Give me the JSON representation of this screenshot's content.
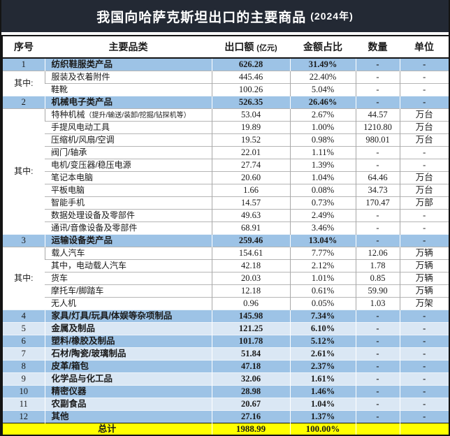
{
  "title": {
    "main": "我国向哈萨克斯坦出口的主要商品",
    "year": "(2024年)"
  },
  "header": {
    "no": "序号",
    "category": "主要品类",
    "export_value": "出口额",
    "export_value_unit": "(亿元)",
    "share": "金额占比",
    "quantity": "数量",
    "unit": "单位"
  },
  "group_label": "其中:",
  "colors": {
    "title_bg": "#232934",
    "category_row_blue": "#9DC3E6",
    "category_row_light_blue": "#DAE7F4",
    "total_row_yellow": "#FFFF00",
    "title_text": "#FFFFFF"
  },
  "rows": [
    {
      "style": "cat-strong",
      "no": "1",
      "label": "纺织鞋服类产品",
      "note": "",
      "value": "626.28",
      "share": "31.49%",
      "qty": "-",
      "unit": "-"
    },
    {
      "style": "sub",
      "group_start": true,
      "group_span": 2,
      "label": "服装及衣着附件",
      "note": "",
      "value": "445.46",
      "share": "22.40%",
      "qty": "-",
      "unit": "-"
    },
    {
      "style": "sub",
      "grouped": true,
      "label": "鞋靴",
      "note": "",
      "value": "100.26",
      "share": "5.04%",
      "qty": "-",
      "unit": "-"
    },
    {
      "style": "cat-strong",
      "no": "2",
      "label": "机械电子类产品",
      "note": "",
      "value": "526.35",
      "share": "26.46%",
      "qty": "-",
      "unit": "-"
    },
    {
      "style": "sub",
      "group_start": true,
      "group_span": 10,
      "label": "特种机械",
      "note": "（提升/输送/装卸/挖掘/钻探机等）",
      "value": "53.04",
      "share": "2.67%",
      "qty": "44.57",
      "unit": "万台"
    },
    {
      "style": "sub",
      "grouped": true,
      "label": "手提风电动工具",
      "note": "",
      "value": "19.89",
      "share": "1.00%",
      "qty": "1210.80",
      "unit": "万台"
    },
    {
      "style": "sub",
      "grouped": true,
      "label": "压缩机/风扇/空调",
      "note": "",
      "value": "19.52",
      "share": "0.98%",
      "qty": "980.01",
      "unit": "万台"
    },
    {
      "style": "sub",
      "grouped": true,
      "label": "阀门/轴承",
      "note": "",
      "value": "22.01",
      "share": "1.11%",
      "qty": "-",
      "unit": "-"
    },
    {
      "style": "sub",
      "grouped": true,
      "label": "电机/变压器/稳压电源",
      "note": "",
      "value": "27.74",
      "share": "1.39%",
      "qty": "-",
      "unit": "-"
    },
    {
      "style": "sub",
      "grouped": true,
      "label": "笔记本电脑",
      "note": "",
      "value": "20.60",
      "share": "1.04%",
      "qty": "64.46",
      "unit": "万台"
    },
    {
      "style": "sub",
      "grouped": true,
      "label": "平板电脑",
      "note": "",
      "value": "1.66",
      "share": "0.08%",
      "qty": "34.73",
      "unit": "万台"
    },
    {
      "style": "sub",
      "grouped": true,
      "label": "智能手机",
      "note": "",
      "value": "14.57",
      "share": "0.73%",
      "qty": "170.47",
      "unit": "万部"
    },
    {
      "style": "sub",
      "grouped": true,
      "label": "数据处理设备及零部件",
      "note": "",
      "value": "49.63",
      "share": "2.49%",
      "qty": "-",
      "unit": "-"
    },
    {
      "style": "sub",
      "grouped": true,
      "label": "通讯/音像设备及零部件",
      "note": "",
      "value": "68.91",
      "share": "3.46%",
      "qty": "-",
      "unit": "-"
    },
    {
      "style": "cat-strong",
      "no": "3",
      "label": "运输设备类产品",
      "note": "",
      "value": "259.46",
      "share": "13.04%",
      "qty": "-",
      "unit": "-"
    },
    {
      "style": "sub",
      "group_start": true,
      "group_span": 5,
      "label": "载人汽车",
      "note": "",
      "value": "154.61",
      "share": "7.77%",
      "qty": "12.06",
      "unit": "万辆"
    },
    {
      "style": "sub",
      "grouped": true,
      "label": "其中，电动载人汽车",
      "note": "",
      "value": "42.18",
      "share": "2.12%",
      "qty": "1.78",
      "unit": "万辆"
    },
    {
      "style": "sub",
      "grouped": true,
      "label": "货车",
      "note": "",
      "value": "20.03",
      "share": "1.01%",
      "qty": "0.85",
      "unit": "万辆"
    },
    {
      "style": "sub",
      "grouped": true,
      "label": "摩托车/脚踏车",
      "note": "",
      "value": "12.18",
      "share": "0.61%",
      "qty": "59.90",
      "unit": "万辆"
    },
    {
      "style": "sub",
      "grouped": true,
      "label": "无人机",
      "note": "",
      "value": "0.96",
      "share": "0.05%",
      "qty": "1.03",
      "unit": "万架"
    },
    {
      "style": "cat-strong",
      "no": "4",
      "label": "家具/灯具/玩具/体娱等杂项制品",
      "note": "",
      "value": "145.98",
      "share": "7.34%",
      "qty": "-",
      "unit": "-"
    },
    {
      "style": "cat-light",
      "no": "5",
      "label": "金属及制品",
      "note": "",
      "value": "121.25",
      "share": "6.10%",
      "qty": "-",
      "unit": "-"
    },
    {
      "style": "cat-strong",
      "no": "6",
      "label": "塑料/橡胶及制品",
      "note": "",
      "value": "101.78",
      "share": "5.12%",
      "qty": "-",
      "unit": "-"
    },
    {
      "style": "cat-light",
      "no": "7",
      "label": "石材/陶瓷/玻璃制品",
      "note": "",
      "value": "51.84",
      "share": "2.61%",
      "qty": "-",
      "unit": "-"
    },
    {
      "style": "cat-strong",
      "no": "8",
      "label": "皮革/箱包",
      "note": "",
      "value": "47.18",
      "share": "2.37%",
      "qty": "-",
      "unit": "-"
    },
    {
      "style": "cat-light",
      "no": "9",
      "label": "化学品与化工品",
      "note": "",
      "value": "32.06",
      "share": "1.61%",
      "qty": "-",
      "unit": "-"
    },
    {
      "style": "cat-strong",
      "no": "10",
      "label": "精密仪器",
      "note": "",
      "value": "28.98",
      "share": "1.46%",
      "qty": "-",
      "unit": "-"
    },
    {
      "style": "cat-light",
      "no": "11",
      "label": "农副食品",
      "note": "",
      "value": "20.67",
      "share": "1.04%",
      "qty": "-",
      "unit": "-"
    },
    {
      "style": "cat-strong",
      "no": "12",
      "label": "其他",
      "note": "",
      "value": "27.16",
      "share": "1.37%",
      "qty": "-",
      "unit": "-"
    }
  ],
  "total": {
    "label": "总计",
    "value": "1988.99",
    "share": "100.00%",
    "quantity": "",
    "unit": ""
  }
}
